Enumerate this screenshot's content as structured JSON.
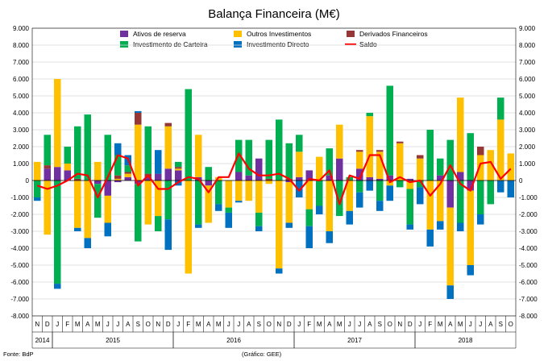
{
  "chart_data": {
    "type": "bar",
    "stacked": true,
    "title": "Balança Financeira (M€)",
    "xlabel": "",
    "ylabel": "",
    "ylim": [
      -8000,
      9000
    ],
    "ytick_step": 1000,
    "yticks_left": [
      "9.000",
      "8.000",
      "7.000",
      "6.000",
      "5.000",
      "4.000",
      "3.000",
      "2.000",
      "1.000",
      "0",
      "-1.000",
      "-2.000",
      "-3.000",
      "-4.000",
      "-5.000",
      "-6.000",
      "-7.000",
      "-8.000"
    ],
    "yticks_right": [
      "9.000",
      "8.000",
      "7.000",
      "6.000",
      "5.000",
      "4.000",
      "3.000",
      "2.000",
      "1.000",
      "0",
      "-1.000",
      "-2.000",
      "-3.000",
      "-4.000",
      "-5.000",
      "-6.000",
      "-7.000",
      "-8.000"
    ],
    "grid": true,
    "legend_position": "top",
    "categories": [
      "N",
      "D",
      "J",
      "F",
      "M",
      "A",
      "M",
      "J",
      "J",
      "A",
      "S",
      "O",
      "N",
      "D",
      "J",
      "F",
      "M",
      "A",
      "M",
      "J",
      "J",
      "A",
      "S",
      "O",
      "N",
      "D",
      "J",
      "F",
      "M",
      "A",
      "M",
      "J",
      "J",
      "A",
      "S",
      "O",
      "N",
      "D",
      "J",
      "F",
      "M",
      "A",
      "M",
      "J",
      "J",
      "A",
      "S",
      "O"
    ],
    "years": [
      {
        "label": "2014",
        "start": 0,
        "end": 1
      },
      {
        "label": "2015",
        "start": 2,
        "end": 13
      },
      {
        "label": "2016",
        "start": 14,
        "end": 25
      },
      {
        "label": "2017",
        "start": 26,
        "end": 37
      },
      {
        "label": "2018",
        "start": 38,
        "end": 47
      }
    ],
    "series": [
      {
        "name": "Ativos de reserva",
        "color": "#7030a0",
        "values": [
          0,
          700,
          800,
          600,
          0,
          0,
          -200,
          -900,
          -100,
          200,
          -200,
          200,
          400,
          700,
          600,
          0,
          200,
          -300,
          0,
          0,
          500,
          300,
          1300,
          0,
          0,
          -100,
          200,
          600,
          0,
          300,
          1300,
          0,
          700,
          200,
          100,
          300,
          0,
          100,
          0,
          0,
          300,
          -1600,
          500,
          -600,
          0,
          0,
          0,
          0
        ]
      },
      {
        "name": "Outros Investimentos",
        "color": "#ffc000",
        "values": [
          1100,
          -3200,
          5200,
          400,
          -2800,
          -3400,
          1100,
          -1600,
          100,
          200,
          3300,
          -2600,
          -2100,
          2500,
          100,
          -5500,
          2500,
          -2200,
          200,
          -1600,
          -1200,
          -1200,
          -1900,
          -200,
          -5200,
          -2400,
          1500,
          -1700,
          1400,
          -3000,
          2000,
          -1800,
          1000,
          3600,
          1600,
          -300,
          2200,
          -500,
          1300,
          -2900,
          -2400,
          -4600,
          4400,
          -4400,
          1500,
          1800,
          3600,
          1600
        ]
      },
      {
        "name": "Derivados Financeiros",
        "color": "#953735",
        "values": [
          0,
          200,
          0,
          0,
          100,
          0,
          0,
          0,
          200,
          100,
          700,
          200,
          0,
          200,
          100,
          0,
          0,
          0,
          0,
          0,
          0,
          0,
          0,
          100,
          0,
          100,
          0,
          0,
          0,
          0,
          0,
          0,
          100,
          0,
          100,
          0,
          100,
          0,
          200,
          0,
          0,
          0,
          0,
          0,
          500,
          0,
          0,
          0
        ]
      },
      {
        "name": "Investimento de Carteira",
        "color": "#00b050",
        "values": [
          -1000,
          1800,
          -6100,
          1000,
          3100,
          3900,
          -2000,
          2700,
          1200,
          400,
          -3400,
          2800,
          -900,
          -2300,
          300,
          5400,
          -2600,
          800,
          -1400,
          -300,
          1900,
          2100,
          -800,
          2300,
          3600,
          2100,
          1000,
          -1000,
          -1500,
          1600,
          -2100,
          200,
          -700,
          200,
          -1200,
          5300,
          -400,
          -2100,
          -400,
          3000,
          1000,
          2400,
          -2500,
          2800,
          -2000,
          -1400,
          1300,
          0
        ]
      },
      {
        "name": "Investimento Directo",
        "color": "#0070c0",
        "values": [
          -200,
          0,
          -300,
          0,
          -200,
          -600,
          0,
          -800,
          700,
          600,
          100,
          0,
          1400,
          -1800,
          -300,
          0,
          -200,
          0,
          -400,
          -900,
          -100,
          0,
          -300,
          0,
          -300,
          -300,
          -1000,
          -1300,
          -500,
          -700,
          0,
          -800,
          -900,
          -600,
          -600,
          -900,
          0,
          -300,
          -1000,
          -1000,
          -500,
          -800,
          -500,
          -600,
          -600,
          0,
          -700,
          -1000
        ]
      }
    ],
    "line_series": {
      "name": "Saldo",
      "color": "#ff0000",
      "values": [
        -300,
        -500,
        -300,
        0,
        400,
        300,
        -1000,
        200,
        1500,
        1300,
        -300,
        300,
        -500,
        -500,
        -100,
        200,
        100,
        -700,
        200,
        200,
        1600,
        700,
        300,
        300,
        400,
        100,
        -600,
        100,
        0,
        600,
        -1400,
        300,
        100,
        1500,
        1500,
        -100,
        200,
        -100,
        0,
        -900,
        -200,
        900,
        -200,
        -600,
        1000,
        1100,
        100,
        700
      ]
    },
    "legend": [
      {
        "name": "Ativos de reserva",
        "type": "bar",
        "color": "#7030a0"
      },
      {
        "name": "Outros Investimentos",
        "type": "bar",
        "color": "#ffc000"
      },
      {
        "name": "Derivados Financeiros",
        "type": "bar",
        "color": "#953735"
      },
      {
        "name": "Investimento de Carteira",
        "type": "bar",
        "color": "#00b050"
      },
      {
        "name": "Investimento Directo",
        "type": "bar",
        "color": "#0070c0"
      },
      {
        "name": "Saldo",
        "type": "line",
        "color": "#ff0000"
      }
    ]
  },
  "footer": {
    "source": "Fonte: BdP",
    "credit": "(Gráfico: GEE)"
  }
}
